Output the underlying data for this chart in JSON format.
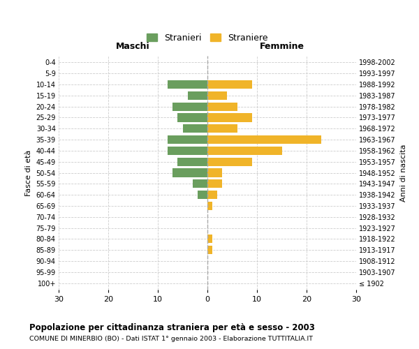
{
  "age_groups": [
    "100+",
    "95-99",
    "90-94",
    "85-89",
    "80-84",
    "75-79",
    "70-74",
    "65-69",
    "60-64",
    "55-59",
    "50-54",
    "45-49",
    "40-44",
    "35-39",
    "30-34",
    "25-29",
    "20-24",
    "15-19",
    "10-14",
    "5-9",
    "0-4"
  ],
  "birth_years": [
    "≤ 1902",
    "1903-1907",
    "1908-1912",
    "1913-1917",
    "1918-1922",
    "1923-1927",
    "1928-1932",
    "1933-1937",
    "1938-1942",
    "1943-1947",
    "1948-1952",
    "1953-1957",
    "1958-1962",
    "1963-1967",
    "1968-1972",
    "1973-1977",
    "1978-1982",
    "1983-1987",
    "1988-1992",
    "1993-1997",
    "1998-2002"
  ],
  "maschi": [
    0,
    0,
    0,
    0,
    0,
    0,
    0,
    0,
    2,
    3,
    7,
    6,
    8,
    8,
    5,
    6,
    7,
    4,
    8,
    0,
    0
  ],
  "femmine": [
    0,
    0,
    0,
    1,
    1,
    0,
    0,
    1,
    2,
    3,
    3,
    9,
    15,
    23,
    6,
    9,
    6,
    4,
    9,
    0,
    0
  ],
  "color_maschi": "#6a9e5e",
  "color_femmine": "#f0b429",
  "xlim": 30,
  "title": "Popolazione per cittadinanza straniera per età e sesso - 2003",
  "subtitle": "COMUNE DI MINERBIO (BO) - Dati ISTAT 1° gennaio 2003 - Elaborazione TUTTITALIA.IT",
  "ylabel_left": "Fasce di età",
  "ylabel_right": "Anni di nascita",
  "legend_maschi": "Stranieri",
  "legend_femmine": "Straniere",
  "header_maschi": "Maschi",
  "header_femmine": "Femmine",
  "bg_color": "#ffffff",
  "grid_color": "#cccccc",
  "bar_height": 0.78
}
